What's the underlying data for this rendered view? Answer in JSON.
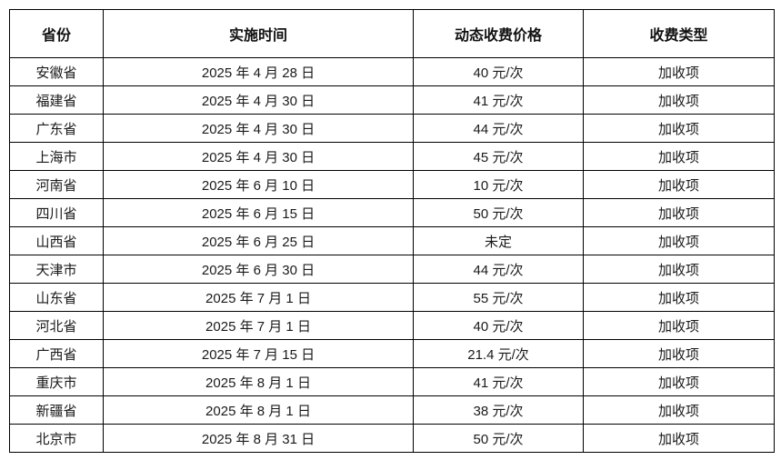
{
  "colors": {
    "background": "#ffffff",
    "border": "#000000",
    "text": "#1a1a1a"
  },
  "table": {
    "columns": [
      {
        "label": "省份"
      },
      {
        "label": "实施时间"
      },
      {
        "label": "动态收费价格"
      },
      {
        "label": "收费类型"
      }
    ],
    "rows": [
      {
        "province": "安徽省",
        "date": "2025 年 4 月 28 日",
        "price": "40 元/次",
        "type": "加收项"
      },
      {
        "province": "福建省",
        "date": "2025 年 4 月 30 日",
        "price": "41 元/次",
        "type": "加收项"
      },
      {
        "province": "广东省",
        "date": "2025 年 4 月 30 日",
        "price": "44 元/次",
        "type": "加收项"
      },
      {
        "province": "上海市",
        "date": "2025 年 4 月 30 日",
        "price": "45 元/次",
        "type": "加收项"
      },
      {
        "province": "河南省",
        "date": "2025 年 6 月 10 日",
        "price": "10 元/次",
        "type": "加收项"
      },
      {
        "province": "四川省",
        "date": "2025 年 6 月 15 日",
        "price": "50 元/次",
        "type": "加收项"
      },
      {
        "province": "山西省",
        "date": "2025 年 6 月 25 日",
        "price": "未定",
        "type": "加收项"
      },
      {
        "province": "天津市",
        "date": "2025 年 6 月 30 日",
        "price": "44 元/次",
        "type": "加收项"
      },
      {
        "province": "山东省",
        "date": "2025 年 7 月 1 日",
        "price": "55 元/次",
        "type": "加收项"
      },
      {
        "province": "河北省",
        "date": "2025 年 7 月 1 日",
        "price": "40 元/次",
        "type": "加收项"
      },
      {
        "province": "广西省",
        "date": "2025 年 7 月 15 日",
        "price": "21.4 元/次",
        "type": "加收项"
      },
      {
        "province": "重庆市",
        "date": "2025 年 8 月 1 日",
        "price": "41 元/次",
        "type": "加收项"
      },
      {
        "province": "新疆省",
        "date": "2025 年 8 月 1 日",
        "price": "38 元/次",
        "type": "加收项"
      },
      {
        "province": "北京市",
        "date": "2025 年 8 月 31 日",
        "price": "50 元/次",
        "type": "加收项"
      }
    ]
  }
}
